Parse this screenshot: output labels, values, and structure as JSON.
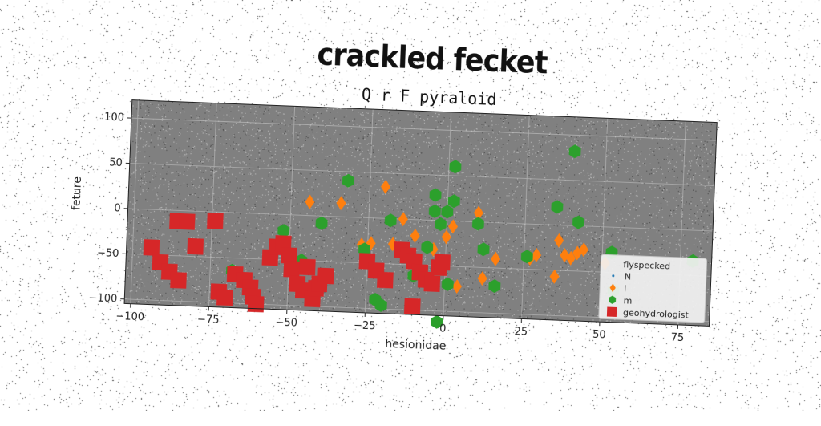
{
  "chart_data": {
    "type": "scatter",
    "title": "crackled fecket",
    "subtitle": "Q r F pyraloid",
    "xlabel": "hesionidae",
    "ylabel": "feture",
    "xlim": [
      -102,
      85
    ],
    "ylim": [
      -105,
      120
    ],
    "xticks": [
      -100,
      -75,
      -50,
      -25,
      0,
      25,
      50,
      75
    ],
    "yticks": [
      -100,
      -50,
      0,
      50,
      100
    ],
    "xtick_labels": [
      "−100",
      "−75",
      "−50",
      "−25",
      "0",
      "25",
      "50",
      "75"
    ],
    "ytick_labels": [
      "−100",
      "−50",
      "0",
      "50",
      "100"
    ],
    "grid": true,
    "background": "#808080",
    "legend": {
      "title": "flyspecked",
      "position": "bottom-right"
    },
    "series": [
      {
        "name": "N",
        "marker": "point",
        "color": "#1f77b4",
        "points": []
      },
      {
        "name": "l",
        "marker": "diamond",
        "color": "#ff7f0e",
        "points": [
          [
            -44,
            15
          ],
          [
            -34,
            15
          ],
          [
            -27,
            -30
          ],
          [
            -24,
            -28
          ],
          [
            -20,
            35
          ],
          [
            -17,
            -28
          ],
          [
            -14,
            0
          ],
          [
            -10,
            -18
          ],
          [
            -4,
            -32
          ],
          [
            0,
            -18
          ],
          [
            2,
            -6
          ],
          [
            4,
            -72
          ],
          [
            10,
            10
          ],
          [
            12,
            -62
          ],
          [
            16,
            -40
          ],
          [
            27,
            -38
          ],
          [
            29,
            -34
          ],
          [
            35,
            -57
          ],
          [
            36,
            -17
          ],
          [
            38,
            -33
          ],
          [
            40,
            -36
          ],
          [
            42,
            -30
          ],
          [
            44,
            -26
          ],
          [
            51,
            -40
          ]
        ]
      },
      {
        "name": "m",
        "marker": "hexagon",
        "color": "#2ca02c",
        "points": [
          [
            -68,
            -64
          ],
          [
            -52,
            -18
          ],
          [
            -46,
            -50
          ],
          [
            -40,
            -8
          ],
          [
            -32,
            40
          ],
          [
            -26,
            -35
          ],
          [
            -22,
            -90
          ],
          [
            -20,
            -96
          ],
          [
            -18,
            -2
          ],
          [
            -10,
            -62
          ],
          [
            -6,
            -30
          ],
          [
            -4,
            10
          ],
          [
            -2,
            -4
          ],
          [
            0,
            10
          ],
          [
            2,
            22
          ],
          [
            -4,
            28
          ],
          [
            2,
            60
          ],
          [
            1,
            -70
          ],
          [
            -2,
            -112
          ],
          [
            10,
            -2
          ],
          [
            12,
            -30
          ],
          [
            16,
            -70
          ],
          [
            26,
            -36
          ],
          [
            35,
            20
          ],
          [
            40,
            82
          ],
          [
            42,
            4
          ],
          [
            53,
            -28
          ],
          [
            54,
            -70
          ],
          [
            79,
            -34
          ]
        ]
      },
      {
        "name": "geohydrologist",
        "marker": "square",
        "color": "#d62728",
        "points": [
          [
            -94,
            -42
          ],
          [
            -91,
            -58
          ],
          [
            -88,
            -68
          ],
          [
            -85,
            -77
          ],
          [
            -86,
            -12
          ],
          [
            -83,
            -12
          ],
          [
            -80,
            -39
          ],
          [
            -74,
            -10
          ],
          [
            -72,
            -88
          ],
          [
            -70,
            -94
          ],
          [
            -67,
            -68
          ],
          [
            -64,
            -74
          ],
          [
            -62,
            -82
          ],
          [
            -61,
            -92
          ],
          [
            -60,
            -100
          ],
          [
            -56,
            -48
          ],
          [
            -54,
            -36
          ],
          [
            -52,
            -32
          ],
          [
            -50,
            -45
          ],
          [
            -49,
            -60
          ],
          [
            -47,
            -76
          ],
          [
            -45,
            -83
          ],
          [
            -44,
            -57
          ],
          [
            -42,
            -92
          ],
          [
            -41,
            -80
          ],
          [
            -40,
            -75
          ],
          [
            -38,
            -66
          ],
          [
            -25,
            -48
          ],
          [
            -22,
            -58
          ],
          [
            -19,
            -68
          ],
          [
            -14,
            -34
          ],
          [
            -12,
            -40
          ],
          [
            -10,
            -46
          ],
          [
            -8,
            -58
          ],
          [
            -6,
            -66
          ],
          [
            -4,
            -70
          ],
          [
            -2,
            -52
          ],
          [
            -1,
            -46
          ],
          [
            -10,
            -96
          ]
        ]
      }
    ]
  }
}
